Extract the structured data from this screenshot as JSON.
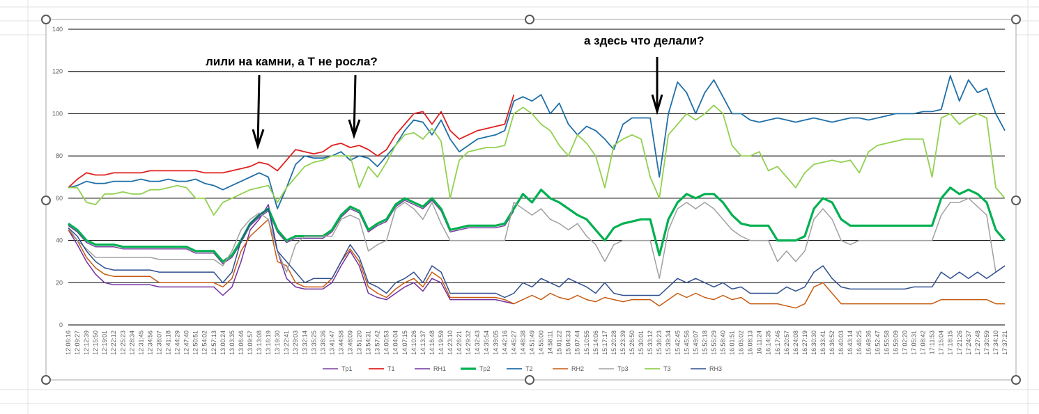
{
  "chart_data": {
    "type": "line",
    "annotations": [
      "лили на камни, а Т не росла?",
      "а здесь что делали?"
    ],
    "categories": [
      "12:06:16",
      "12:09:27",
      "12:12:39",
      "12:15:50",
      "12:19:01",
      "12:22:12",
      "12:25:23",
      "12:28:34",
      "12:31:45",
      "12:34:56",
      "12:38:07",
      "12:41:18",
      "12:44:29",
      "12:47:40",
      "12:50:51",
      "12:54:02",
      "12:57:13",
      "13:00:24",
      "13:03:35",
      "13:06:46",
      "13:09:57",
      "13:13:08",
      "13:16:19",
      "13:19:30",
      "13:22:41",
      "13:29:03",
      "13:32:14",
      "13:35:25",
      "13:38:36",
      "13:41:47",
      "13:44:58",
      "13:48:09",
      "13:51:20",
      "13:54:31",
      "13:57:42",
      "14:00:53",
      "14:04:04",
      "14:07:15",
      "14:10:26",
      "14:13:37",
      "14:16:48",
      "14:19:59",
      "14:23:10",
      "14:26:21",
      "14:29:32",
      "14:32:43",
      "14:35:54",
      "14:39:05",
      "14:42:16",
      "14:45:27",
      "14:48:38",
      "14:51:49",
      "14:55:00",
      "14:58:11",
      "15:01:22",
      "15:04:33",
      "15:07:44",
      "15:10:55",
      "15:14:06",
      "15:17:17",
      "15:20:28",
      "15:23:39",
      "15:26:50",
      "15:30:01",
      "15:33:12",
      "15:36:23",
      "15:39:34",
      "15:42:45",
      "15:45:56",
      "15:49:07",
      "15:52:18",
      "15:55:29",
      "15:58:40",
      "16:01:51",
      "16:05:02",
      "16:08:13",
      "16:11:24",
      "16:14:35",
      "16:17:46",
      "16:20:57",
      "16:24:08",
      "16:27:19",
      "16:30:30",
      "16:33:41",
      "16:36:52",
      "16:40:03",
      "16:43:14",
      "16:46:25",
      "16:49:36",
      "16:52:47",
      "16:55:58",
      "16:59:09",
      "17:02:20",
      "17:05:31",
      "17:08:42",
      "17:11:53",
      "17:15:04",
      "17:18:15",
      "17:21:26",
      "17:24:37",
      "17:27:48",
      "17:30:59",
      "17:34:10",
      "17:37:21"
    ],
    "series": [
      {
        "name": "Tp1",
        "color": "#7b3fa0",
        "width": 1.5,
        "values": [
          47,
          44,
          39,
          37,
          37,
          37,
          36,
          36,
          36,
          36,
          36,
          36,
          36,
          36,
          34,
          34,
          34,
          29,
          32,
          39,
          47,
          51,
          54,
          44,
          39,
          41,
          41,
          41,
          41,
          44,
          51,
          55,
          53,
          44,
          47,
          49,
          56,
          59,
          57,
          55,
          59,
          54,
          44,
          45,
          46,
          46,
          46,
          46,
          47,
          54,
          null,
          null,
          null,
          null,
          null,
          null,
          null,
          null,
          null,
          null,
          null,
          null,
          null,
          null,
          null,
          null,
          null,
          null,
          null,
          null,
          null,
          null,
          null,
          null,
          null,
          null,
          null,
          null,
          null,
          null,
          null,
          null,
          null,
          null,
          null,
          null,
          null,
          null,
          null,
          null,
          null,
          null,
          null,
          null,
          null,
          null,
          null,
          null,
          null,
          null,
          null,
          null,
          null,
          null
        ]
      },
      {
        "name": "T1",
        "color": "#e02020",
        "width": 1.8,
        "values": [
          65,
          69,
          72,
          71,
          71,
          72,
          72,
          72,
          72,
          73,
          73,
          73,
          73,
          73,
          73,
          72,
          72,
          72,
          73,
          74,
          75,
          77,
          76,
          73,
          78,
          83,
          82,
          81,
          82,
          85,
          86,
          84,
          85,
          83,
          80,
          83,
          90,
          95,
          100,
          101,
          95,
          101,
          92,
          88,
          90,
          92,
          93,
          94,
          95,
          109,
          null,
          null,
          null,
          null,
          null,
          null,
          null,
          null,
          null,
          null,
          null,
          null,
          null,
          null,
          null,
          null,
          null,
          null,
          null,
          null,
          null,
          null,
          null,
          null,
          null,
          null,
          null,
          null,
          null,
          null,
          null,
          null,
          null,
          null,
          null,
          null,
          null,
          null,
          null,
          null,
          null,
          null,
          null,
          null,
          null,
          null,
          null,
          null,
          null,
          null,
          null,
          null,
          null,
          null
        ]
      },
      {
        "name": "RH1",
        "color": "#7030a0",
        "width": 1.5,
        "values": [
          45,
          38,
          30,
          24,
          20,
          19,
          19,
          19,
          19,
          19,
          18,
          18,
          18,
          18,
          18,
          18,
          18,
          14,
          18,
          30,
          45,
          50,
          57,
          35,
          22,
          18,
          17,
          17,
          17,
          20,
          28,
          35,
          28,
          15,
          13,
          12,
          15,
          18,
          20,
          16,
          22,
          20,
          12,
          12,
          12,
          12,
          12,
          12,
          11,
          10,
          null,
          null,
          null,
          null,
          null,
          null,
          null,
          null,
          null,
          null,
          null,
          null,
          null,
          null,
          null,
          null,
          null,
          null,
          null,
          null,
          null,
          null,
          null,
          null,
          null,
          null,
          null,
          null,
          null,
          null,
          null,
          null,
          null,
          null,
          null,
          null,
          null,
          null,
          null,
          null,
          null,
          null,
          null,
          null,
          null,
          null,
          null,
          null,
          null,
          null,
          null,
          null,
          null,
          null
        ]
      },
      {
        "name": "Tp2",
        "color": "#00b050",
        "width": 3.2,
        "values": [
          48,
          45,
          40,
          38,
          38,
          38,
          37,
          37,
          37,
          37,
          37,
          37,
          37,
          37,
          35,
          35,
          35,
          30,
          33,
          40,
          48,
          52,
          55,
          45,
          40,
          42,
          42,
          42,
          42,
          45,
          52,
          56,
          54,
          45,
          48,
          50,
          57,
          60,
          58,
          56,
          60,
          55,
          45,
          46,
          47,
          47,
          47,
          47,
          48,
          55,
          62,
          58,
          64,
          60,
          58,
          55,
          52,
          50,
          45,
          40,
          46,
          48,
          49,
          50,
          50,
          33,
          50,
          58,
          62,
          60,
          62,
          62,
          58,
          52,
          48,
          47,
          47,
          47,
          40,
          40,
          40,
          42,
          55,
          60,
          58,
          50,
          47,
          47,
          47,
          47,
          47,
          47,
          47,
          47,
          47,
          47,
          60,
          65,
          62,
          64,
          62,
          58,
          45,
          40
        ]
      },
      {
        "name": "T2",
        "color": "#1f6fa8",
        "width": 1.8,
        "values": [
          65,
          66,
          68,
          67,
          67,
          68,
          68,
          68,
          69,
          68,
          68,
          69,
          68,
          68,
          69,
          67,
          66,
          64,
          66,
          68,
          70,
          72,
          70,
          55,
          65,
          76,
          80,
          79,
          79,
          80,
          82,
          78,
          80,
          79,
          75,
          80,
          85,
          92,
          97,
          96,
          90,
          97,
          88,
          82,
          85,
          88,
          89,
          90,
          92,
          106,
          108,
          106,
          109,
          100,
          105,
          95,
          90,
          94,
          92,
          88,
          83,
          95,
          98,
          98,
          98,
          70,
          100,
          115,
          110,
          100,
          110,
          116,
          108,
          100,
          100,
          97,
          96,
          97,
          98,
          97,
          96,
          97,
          98,
          97,
          96,
          97,
          98,
          98,
          97,
          98,
          99,
          100,
          100,
          100,
          101,
          101,
          102,
          118,
          106,
          116,
          110,
          112,
          100,
          92
        ]
      },
      {
        "name": "RH2",
        "color": "#c55a11",
        "width": 1.5,
        "values": [
          45,
          40,
          32,
          27,
          24,
          23,
          23,
          23,
          23,
          23,
          20,
          20,
          20,
          20,
          20,
          20,
          20,
          18,
          22,
          35,
          42,
          46,
          50,
          30,
          28,
          20,
          18,
          18,
          18,
          22,
          30,
          36,
          30,
          18,
          15,
          13,
          17,
          20,
          22,
          18,
          25,
          22,
          13,
          13,
          13,
          13,
          13,
          13,
          12,
          10,
          12,
          14,
          12,
          15,
          13,
          12,
          14,
          12,
          11,
          13,
          12,
          11,
          12,
          12,
          12,
          9,
          12,
          15,
          13,
          15,
          13,
          12,
          14,
          12,
          13,
          10,
          10,
          10,
          10,
          9,
          8,
          10,
          18,
          20,
          15,
          10,
          10,
          10,
          10,
          10,
          10,
          10,
          10,
          10,
          10,
          10,
          12,
          12,
          12,
          12,
          12,
          12,
          10,
          10
        ]
      },
      {
        "name": "Tp3",
        "color": "#a0a0a0",
        "width": 1.5,
        "values": [
          46,
          40,
          36,
          32,
          32,
          32,
          32,
          32,
          32,
          32,
          31,
          31,
          31,
          31,
          31,
          31,
          31,
          28,
          35,
          45,
          50,
          53,
          50,
          35,
          25,
          38,
          42,
          42,
          42,
          42,
          50,
          52,
          50,
          35,
          38,
          40,
          55,
          58,
          55,
          50,
          58,
          48,
          40,
          40,
          40,
          40,
          40,
          40,
          40,
          58,
          55,
          52,
          55,
          50,
          48,
          45,
          48,
          42,
          38,
          30,
          38,
          40,
          40,
          40,
          40,
          22,
          45,
          55,
          58,
          55,
          58,
          55,
          50,
          45,
          42,
          40,
          40,
          40,
          30,
          35,
          30,
          35,
          50,
          55,
          50,
          40,
          38,
          40,
          40,
          40,
          40,
          40,
          40,
          40,
          40,
          40,
          52,
          58,
          58,
          60,
          56,
          52,
          25,
          28
        ]
      },
      {
        "name": "T3",
        "color": "#92d050",
        "width": 1.8,
        "values": [
          65,
          65,
          58,
          57,
          62,
          62,
          63,
          62,
          62,
          64,
          64,
          65,
          66,
          65,
          60,
          60,
          52,
          58,
          60,
          62,
          64,
          65,
          66,
          58,
          65,
          70,
          75,
          77,
          78,
          80,
          80,
          80,
          65,
          75,
          70,
          77,
          85,
          90,
          91,
          88,
          93,
          87,
          60,
          78,
          82,
          83,
          84,
          84,
          85,
          100,
          103,
          100,
          95,
          92,
          85,
          80,
          90,
          86,
          80,
          65,
          85,
          88,
          90,
          88,
          70,
          60,
          90,
          95,
          100,
          97,
          100,
          104,
          100,
          85,
          80,
          80,
          82,
          73,
          75,
          70,
          65,
          72,
          76,
          77,
          78,
          77,
          78,
          72,
          82,
          85,
          86,
          87,
          88,
          88,
          88,
          70,
          98,
          100,
          95,
          98,
          100,
          98,
          65,
          60
        ]
      },
      {
        "name": "RH3",
        "color": "#2f4f8f",
        "width": 1.5,
        "values": [
          46,
          42,
          35,
          30,
          27,
          26,
          26,
          26,
          26,
          26,
          25,
          25,
          25,
          25,
          25,
          25,
          25,
          20,
          25,
          40,
          48,
          52,
          55,
          35,
          30,
          25,
          20,
          22,
          22,
          22,
          30,
          38,
          32,
          20,
          18,
          15,
          20,
          22,
          25,
          20,
          28,
          25,
          15,
          15,
          15,
          15,
          15,
          15,
          13,
          15,
          20,
          18,
          22,
          20,
          18,
          22,
          20,
          18,
          15,
          20,
          15,
          14,
          14,
          14,
          14,
          14,
          18,
          22,
          20,
          22,
          20,
          18,
          20,
          17,
          18,
          15,
          15,
          15,
          15,
          18,
          16,
          18,
          25,
          28,
          22,
          18,
          17,
          17,
          17,
          17,
          17,
          17,
          17,
          18,
          18,
          18,
          25,
          22,
          25,
          22,
          25,
          22,
          25,
          28
        ]
      }
    ],
    "ylim": [
      0,
      140
    ],
    "yticks": [
      0,
      20,
      40,
      60,
      80,
      100,
      120,
      140
    ],
    "grid": true,
    "legend": "bottom"
  }
}
